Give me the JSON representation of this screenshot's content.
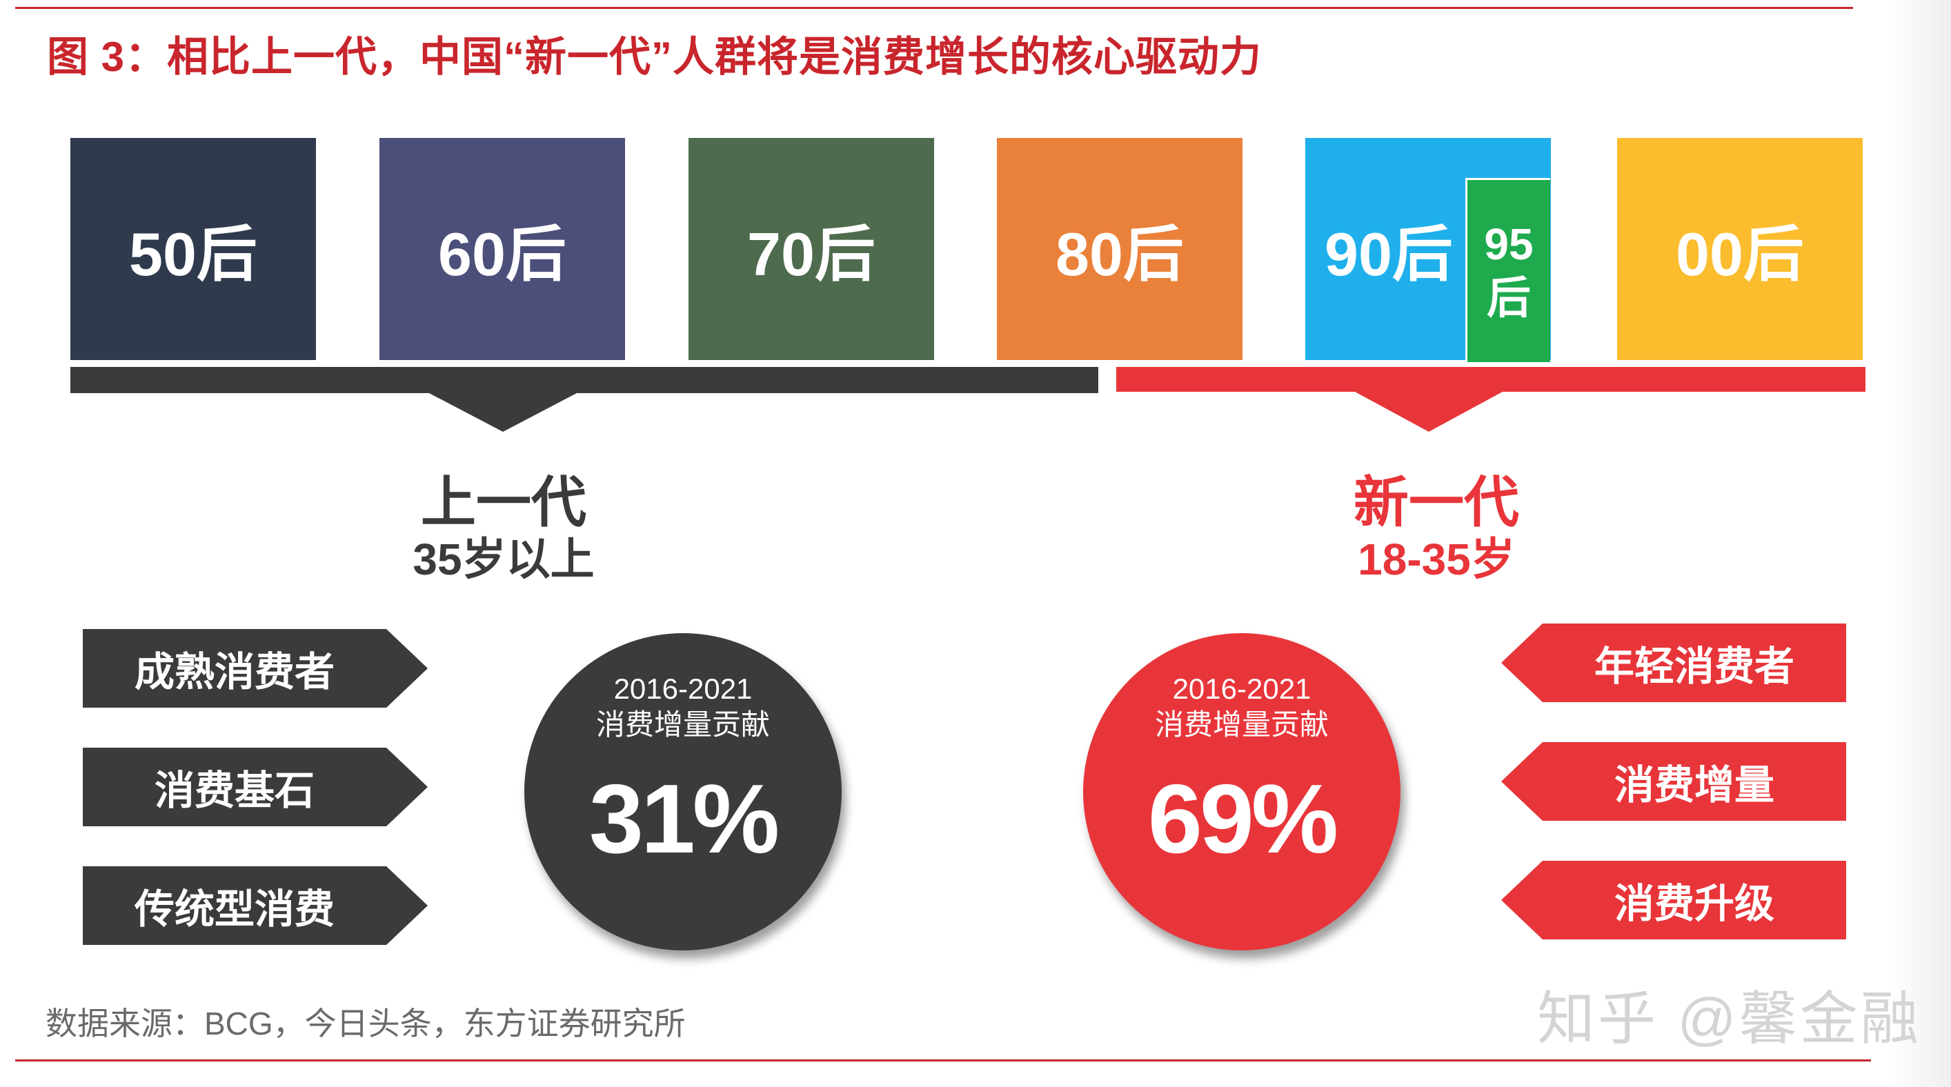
{
  "title": "图 3：相比上一代，中国“新一代”人群将是消费增长的核心驱动力",
  "generations": [
    {
      "label": "50后",
      "color": "#2f3a4d"
    },
    {
      "label": "60后",
      "color": "#4b4f79"
    },
    {
      "label": "70后",
      "color": "#4e6b4e"
    },
    {
      "label": "80后",
      "color": "#ea813a"
    },
    {
      "label": "90后",
      "color": "#1fb0ec",
      "sub_label_line1": "95",
      "sub_label_line2": "后",
      "sub_color": "#1faa4e"
    },
    {
      "label": "00后",
      "color": "#fbbd2e"
    }
  ],
  "groups": {
    "old": {
      "name": "上一代",
      "age": "35岁以上",
      "color": "#3b3b3b",
      "tags": [
        "成熟消费者",
        "消费基石",
        "传统型消费"
      ],
      "period": "2016-2021",
      "metric_label": "消费增量贡献",
      "value": "31%"
    },
    "new": {
      "name": "新一代",
      "age": "18-35岁",
      "color": "#e8353a",
      "tags": [
        "年轻消费者",
        "消费增量",
        "消费升级"
      ],
      "period": "2016-2021",
      "metric_label": "消费增量贡献",
      "value": "69%"
    }
  },
  "source": "数据来源：BCG，今日头条，东方证券研究所",
  "watermark": "知乎 @馨金融"
}
